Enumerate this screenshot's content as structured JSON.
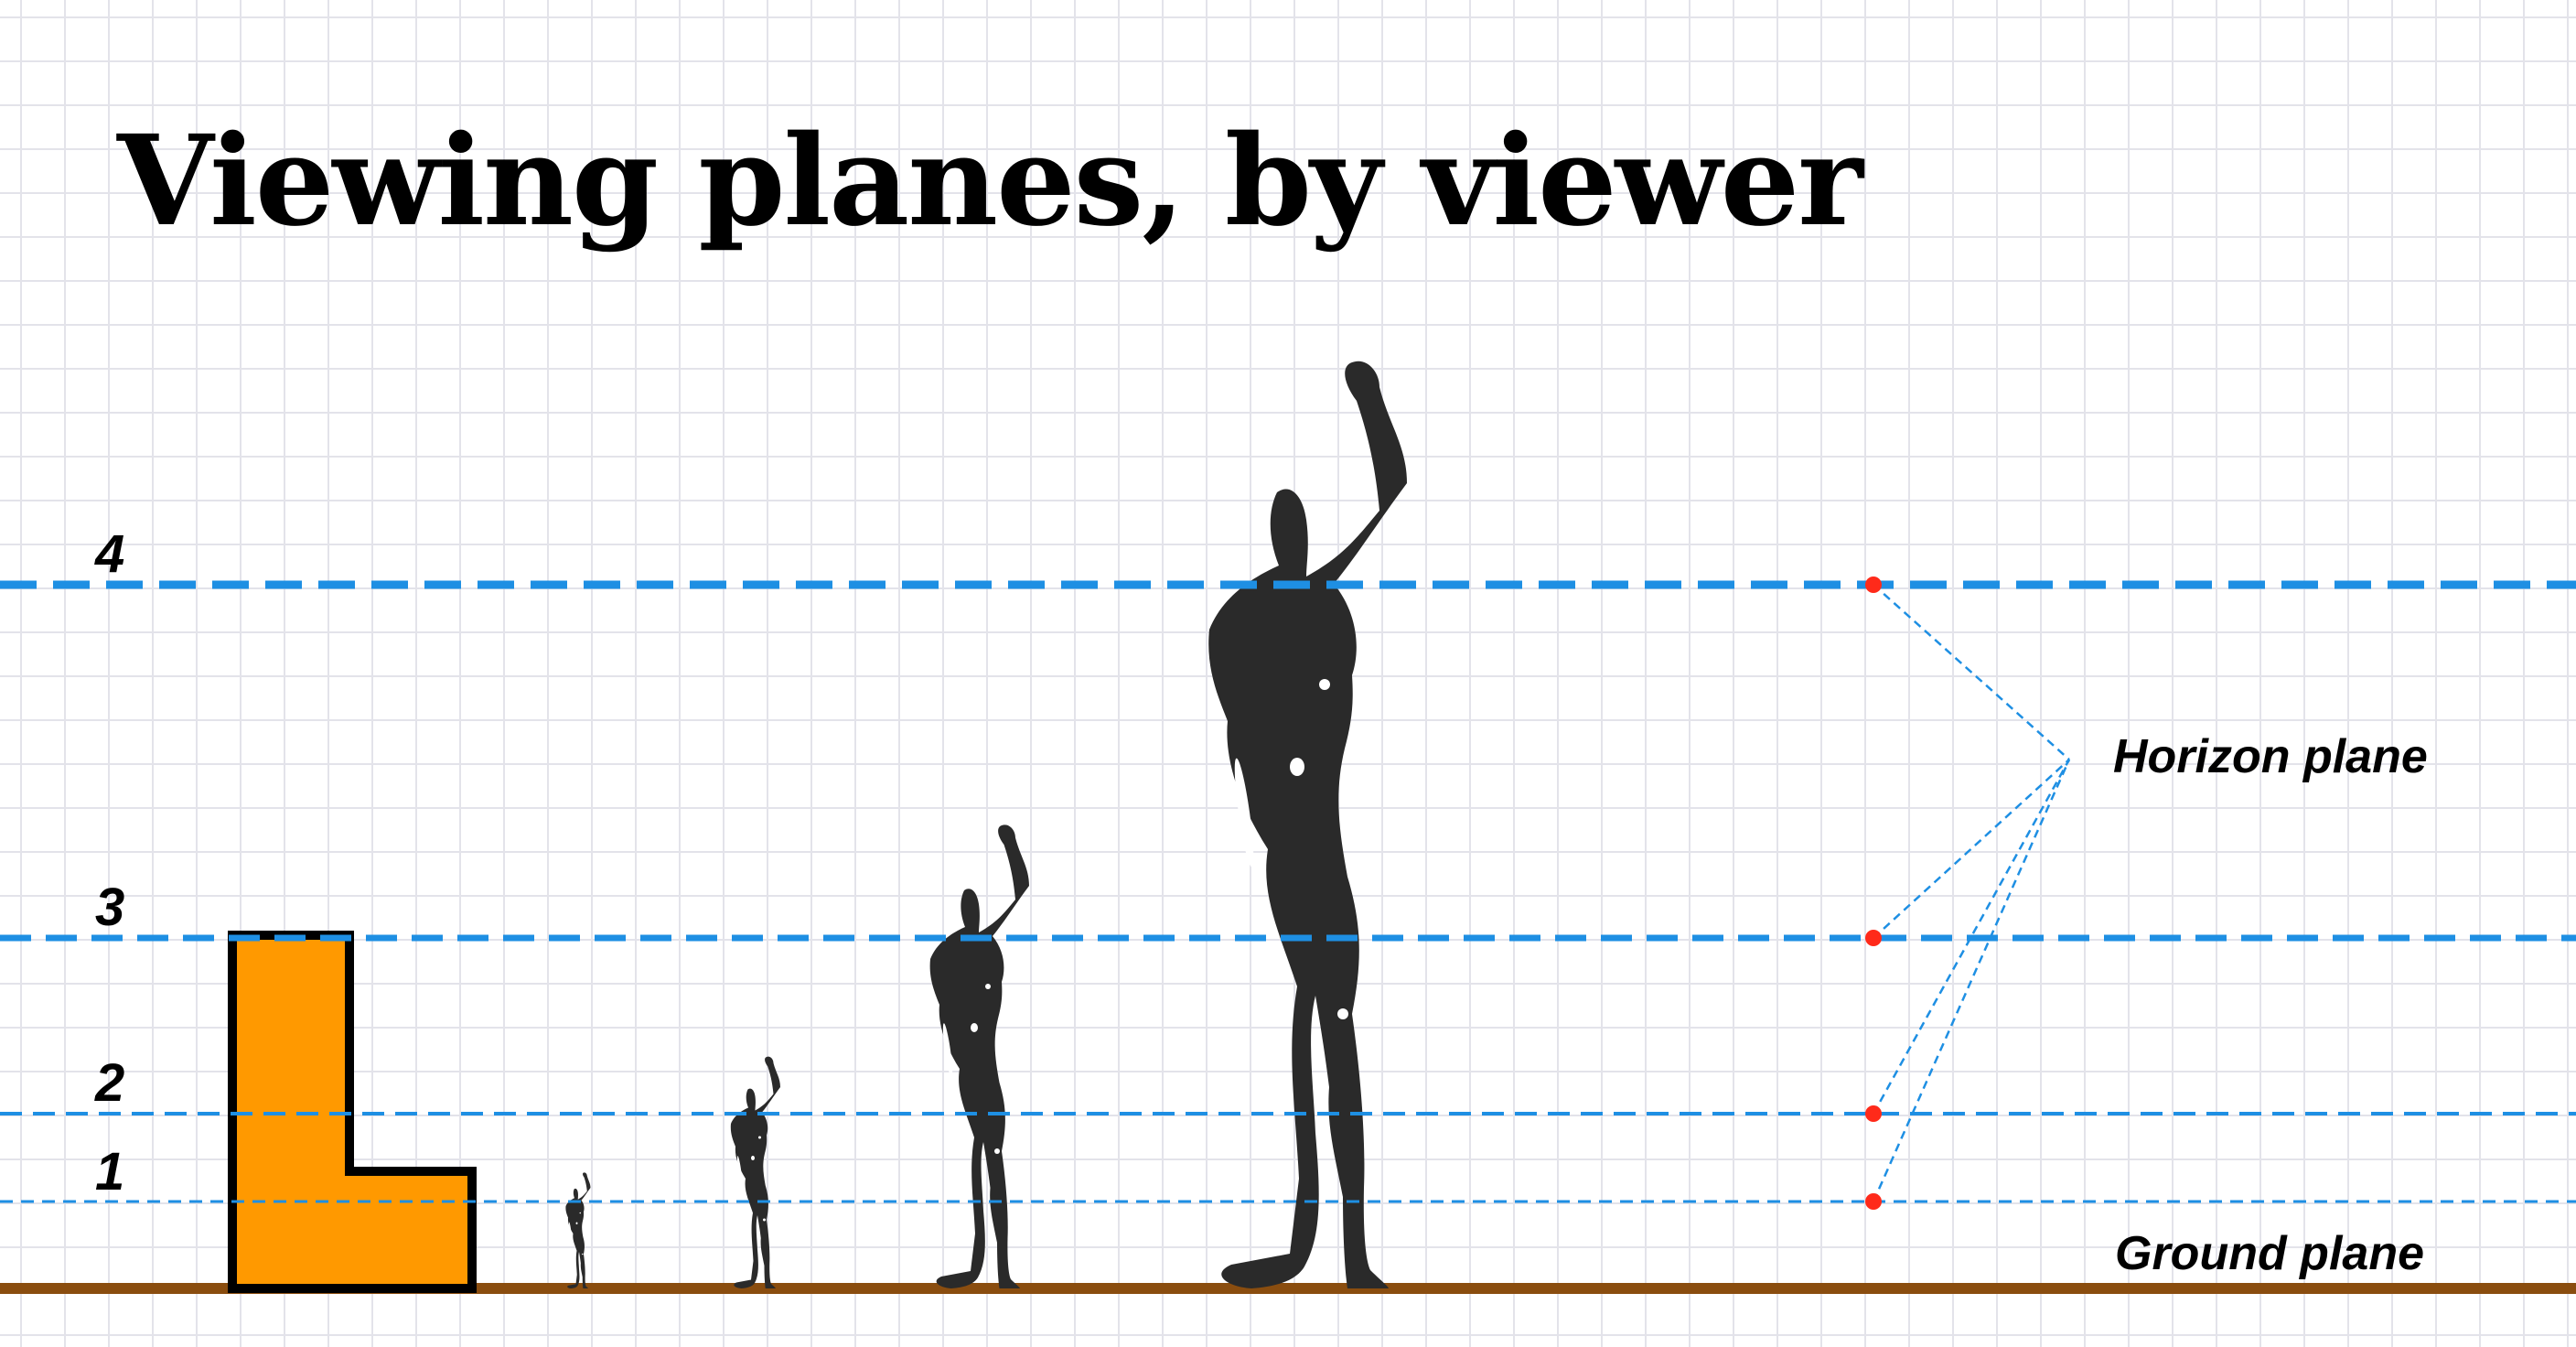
{
  "title": "Viewing planes, by viewer",
  "planes": [
    {
      "label": "1"
    },
    {
      "label": "2"
    },
    {
      "label": "3"
    },
    {
      "label": "4"
    }
  ],
  "labels": {
    "horizon": "Horizon plane",
    "ground": "Ground plane"
  },
  "colors": {
    "plane_line": "#1e8fe3",
    "marker": "#ff2a1a",
    "building": "#ff9900",
    "ground": "#8a4d0f",
    "figure": "#2a2a2a"
  },
  "icons": [
    "modulor-figure-icon",
    "l-shaped-building-icon"
  ]
}
